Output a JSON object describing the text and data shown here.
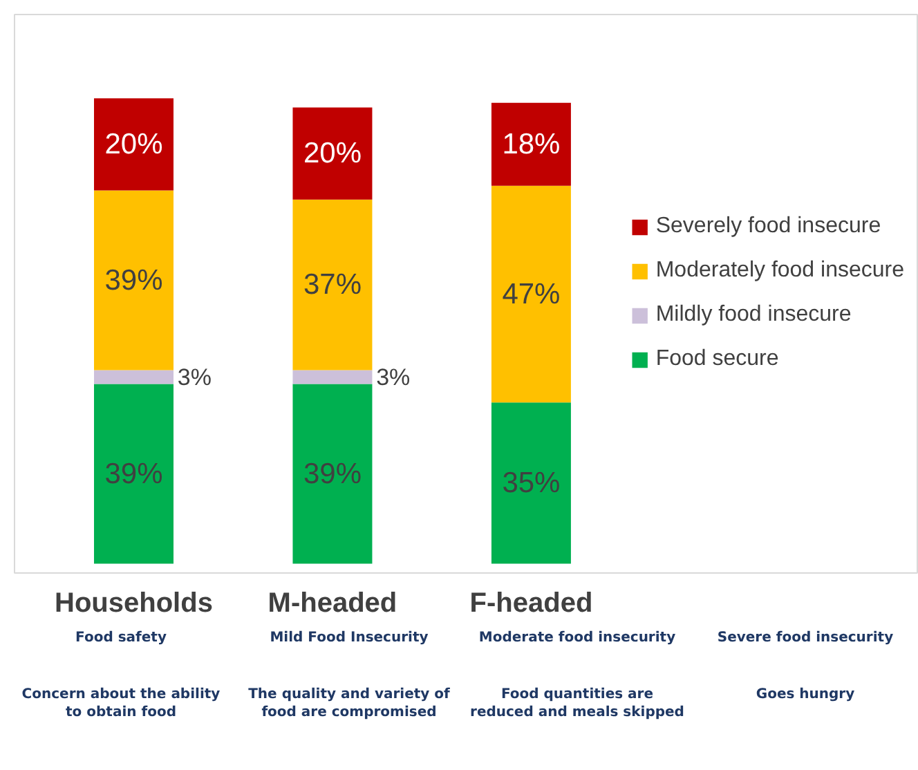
{
  "chart_data": {
    "type": "bar",
    "stacked": true,
    "categories": [
      "Households",
      "M-headed",
      "F-headed"
    ],
    "series": [
      {
        "name": "Food secure",
        "color": "#00b050",
        "values": [
          39,
          39,
          35
        ],
        "value_labels": [
          "39%",
          "39%",
          "35%"
        ]
      },
      {
        "name": "Mildly food insecure",
        "color": "#ccc0da",
        "values": [
          3,
          3,
          0
        ],
        "value_labels": [
          "3%",
          "3%",
          null
        ]
      },
      {
        "name": "Moderately food insecure",
        "color": "#ffc000",
        "values": [
          39,
          37,
          47
        ],
        "value_labels": [
          "39%",
          "37%",
          "47%"
        ]
      },
      {
        "name": "Severely food insecure",
        "color": "#c00000",
        "values": [
          20,
          20,
          18
        ],
        "value_labels": [
          "20%",
          "20%",
          "18%"
        ]
      }
    ],
    "legend": "right",
    "grid": false,
    "annotations": [
      "Food safety",
      "Mild Food Insecurity",
      "Moderate food insecurity",
      "Severe food insecurity",
      "Concern about the ability to obtain food",
      "The quality and variety of food are compromised",
      "Food quantities are reduced and meals skipped",
      "Goes hungry"
    ]
  }
}
